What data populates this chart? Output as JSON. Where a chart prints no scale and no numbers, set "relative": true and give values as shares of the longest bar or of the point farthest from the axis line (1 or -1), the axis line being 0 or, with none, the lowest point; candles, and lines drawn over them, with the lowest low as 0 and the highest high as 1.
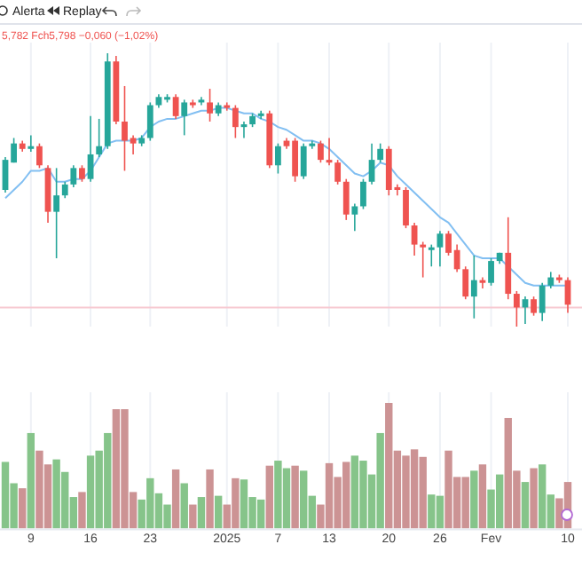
{
  "chart_data": [
    {
      "type": "candlestick",
      "relative": true,
      "grid": "x",
      "annotations": [
        "Alerta",
        "Replay",
        "5,782 Fch5,798 −0,060 (−1,02%)"
      ],
      "categories": [
        null,
        null,
        null,
        null,
        null,
        null,
        null,
        null,
        null,
        null,
        null,
        null,
        null,
        null,
        null,
        null,
        null,
        null,
        null,
        null,
        null,
        null,
        null,
        null,
        null,
        null,
        null,
        null,
        null,
        null,
        null,
        null,
        null,
        null,
        null,
        null,
        null,
        null,
        null,
        null,
        null,
        null,
        null,
        null,
        null,
        null,
        null,
        null,
        null,
        null,
        null,
        null,
        null,
        null,
        null,
        null,
        null,
        null,
        null,
        null,
        null,
        null,
        null,
        null,
        null,
        null,
        null
      ],
      "ohlc": [
        [
          0.5,
          0.62,
          0.49,
          0.61
        ],
        [
          0.6,
          0.69,
          0.6,
          0.67
        ],
        [
          0.67,
          0.68,
          0.64,
          0.65
        ],
        [
          0.65,
          0.7,
          0.64,
          0.66
        ],
        [
          0.66,
          0.67,
          0.58,
          0.59
        ],
        [
          0.58,
          0.59,
          0.38,
          0.42
        ],
        [
          0.42,
          0.58,
          0.25,
          0.48
        ],
        [
          0.48,
          0.53,
          0.47,
          0.52
        ],
        [
          0.52,
          0.59,
          0.51,
          0.58
        ],
        [
          0.58,
          0.59,
          0.53,
          0.54
        ],
        [
          0.54,
          0.77,
          0.53,
          0.63
        ],
        [
          0.63,
          0.76,
          0.62,
          0.66
        ],
        [
          0.66,
          1.0,
          0.65,
          0.97
        ],
        [
          0.97,
          0.99,
          0.74,
          0.75
        ],
        [
          0.75,
          0.88,
          0.57,
          0.68
        ],
        [
          0.69,
          0.7,
          0.63,
          0.67
        ],
        [
          0.67,
          0.7,
          0.66,
          0.69
        ],
        [
          0.69,
          0.82,
          0.68,
          0.81
        ],
        [
          0.81,
          0.85,
          0.8,
          0.84
        ],
        [
          0.83,
          0.85,
          0.82,
          0.84
        ],
        [
          0.84,
          0.85,
          0.76,
          0.77
        ],
        [
          0.77,
          0.83,
          0.7,
          0.82
        ],
        [
          0.82,
          0.83,
          0.8,
          0.81
        ],
        [
          0.82,
          0.84,
          0.81,
          0.83
        ],
        [
          0.82,
          0.87,
          0.75,
          0.78
        ],
        [
          0.78,
          0.82,
          0.77,
          0.81
        ],
        [
          0.81,
          0.82,
          0.79,
          0.8
        ],
        [
          0.8,
          0.81,
          0.69,
          0.73
        ],
        [
          0.73,
          0.75,
          0.69,
          0.74
        ],
        [
          0.74,
          0.78,
          0.73,
          0.77
        ],
        [
          0.77,
          0.79,
          0.76,
          0.78
        ],
        [
          0.78,
          0.79,
          0.58,
          0.59
        ],
        [
          0.59,
          0.67,
          0.56,
          0.66
        ],
        [
          0.68,
          0.69,
          0.65,
          0.66
        ],
        [
          0.68,
          0.69,
          0.53,
          0.55
        ],
        [
          0.55,
          0.67,
          0.54,
          0.66
        ],
        [
          0.66,
          0.68,
          0.65,
          0.67
        ],
        [
          0.67,
          0.68,
          0.6,
          0.61
        ],
        [
          0.61,
          0.69,
          0.59,
          0.6
        ],
        [
          0.6,
          0.61,
          0.52,
          0.53
        ],
        [
          0.53,
          0.54,
          0.39,
          0.41
        ],
        [
          0.41,
          0.45,
          0.35,
          0.44
        ],
        [
          0.44,
          0.54,
          0.43,
          0.53
        ],
        [
          0.53,
          0.67,
          0.52,
          0.61
        ],
        [
          0.61,
          0.67,
          0.6,
          0.65
        ],
        [
          0.65,
          0.66,
          0.48,
          0.5
        ],
        [
          0.51,
          0.52,
          0.48,
          0.5
        ],
        [
          0.5,
          0.51,
          0.36,
          0.37
        ],
        [
          0.37,
          0.38,
          0.26,
          0.3
        ],
        [
          0.3,
          0.31,
          0.18,
          0.29
        ],
        [
          0.28,
          0.3,
          0.22,
          0.29
        ],
        [
          0.29,
          0.35,
          0.22,
          0.34
        ],
        [
          0.34,
          0.35,
          0.26,
          0.27
        ],
        [
          0.28,
          0.3,
          0.2,
          0.21
        ],
        [
          0.21,
          0.22,
          0.1,
          0.11
        ],
        [
          0.11,
          0.26,
          0.03,
          0.17
        ],
        [
          0.17,
          0.18,
          0.14,
          0.16
        ],
        [
          0.16,
          0.25,
          0.15,
          0.24
        ],
        [
          0.24,
          0.27,
          0.23,
          0.27
        ],
        [
          0.27,
          0.4,
          0.1,
          0.12
        ],
        [
          0.12,
          0.13,
          0.0,
          0.07
        ],
        [
          0.07,
          0.11,
          0.01,
          0.1
        ],
        [
          0.1,
          0.11,
          0.04,
          0.05
        ],
        [
          0.05,
          0.16,
          0.02,
          0.15
        ],
        [
          0.15,
          0.2,
          0.14,
          0.18
        ],
        [
          0.18,
          0.19,
          0.16,
          0.17
        ],
        [
          0.17,
          0.18,
          0.05,
          0.08
        ]
      ],
      "series": [
        {
          "type": "line",
          "color": "#82bff2",
          "values": [
            0.47,
            0.5,
            0.53,
            0.57,
            0.57,
            0.58,
            0.53,
            0.53,
            0.54,
            0.54,
            0.57,
            0.62,
            0.67,
            0.68,
            0.68,
            0.68,
            0.69,
            0.73,
            0.75,
            0.76,
            0.76,
            0.77,
            0.78,
            0.79,
            0.79,
            0.8,
            0.8,
            0.79,
            0.78,
            0.78,
            0.76,
            0.75,
            0.73,
            0.72,
            0.7,
            0.68,
            0.68,
            0.67,
            0.65,
            0.62,
            0.59,
            0.56,
            0.55,
            0.57,
            0.6,
            0.59,
            0.55,
            0.52,
            0.49,
            0.46,
            0.43,
            0.4,
            0.38,
            0.34,
            0.3,
            0.26,
            0.25,
            0.25,
            0.25,
            0.22,
            0.19,
            0.16,
            0.15,
            0.15,
            0.15,
            0.15,
            0.15
          ]
        }
      ],
      "ref_lines": [
        {
          "axis": "y",
          "value": 0.07,
          "color": "#f7c9d2"
        }
      ]
    },
    {
      "type": "bar",
      "relative": true,
      "tick_labels": "x",
      "grid": "x",
      "categories": [
        null,
        null,
        null,
        "9",
        null,
        null,
        null,
        null,
        null,
        null,
        "16",
        null,
        null,
        null,
        null,
        null,
        null,
        "23",
        null,
        null,
        null,
        null,
        null,
        null,
        null,
        null,
        "2025",
        null,
        null,
        null,
        null,
        null,
        "7",
        null,
        null,
        null,
        null,
        null,
        "13",
        null,
        null,
        null,
        null,
        null,
        null,
        "20",
        null,
        null,
        null,
        null,
        null,
        "26",
        null,
        null,
        null,
        null,
        null,
        "Fev",
        null,
        null,
        null,
        null,
        null,
        null,
        null,
        null,
        "10"
      ],
      "values": [
        0.53,
        0.36,
        0.32,
        0.76,
        0.62,
        0.51,
        0.55,
        0.45,
        0.25,
        0.29,
        0.58,
        0.62,
        0.76,
        0.95,
        0.95,
        0.29,
        0.23,
        0.4,
        0.28,
        0.19,
        0.47,
        0.36,
        0.19,
        0.25,
        0.47,
        0.26,
        0.19,
        0.4,
        0.39,
        0.25,
        0.23,
        0.5,
        0.54,
        0.48,
        0.5,
        0.46,
        0.26,
        0.19,
        0.52,
        0.41,
        0.53,
        0.58,
        0.54,
        0.43,
        0.76,
        1,
        0.62,
        0.58,
        0.63,
        0.57,
        0.27,
        0.26,
        0.62,
        0.41,
        0.41,
        0.46,
        0.51,
        0.31,
        0.43,
        0.88,
        0.46,
        0.37,
        0.48,
        0.51,
        0.27,
        0.24,
        0.37
      ],
      "colors": [
        "#86c48a",
        "#86c48a",
        "#cc9394",
        "#86c48a",
        "#cc9394",
        "#cc9394",
        "#86c48a",
        "#86c48a",
        "#86c48a",
        "#cc9394",
        "#86c48a",
        "#86c48a",
        "#86c48a",
        "#cc9394",
        "#cc9394",
        "#cc9394",
        "#86c48a",
        "#86c48a",
        "#86c48a",
        "#86c48a",
        "#cc9394",
        "#86c48a",
        "#cc9394",
        "#86c48a",
        "#cc9394",
        "#86c48a",
        "#cc9394",
        "#cc9394",
        "#86c48a",
        "#86c48a",
        "#86c48a",
        "#cc9394",
        "#86c48a",
        "#86c48a",
        "#cc9394",
        "#86c48a",
        "#86c48a",
        "#cc9394",
        "#cc9394",
        "#cc9394",
        "#cc9394",
        "#86c48a",
        "#86c48a",
        "#86c48a",
        "#86c48a",
        "#cc9394",
        "#cc9394",
        "#cc9394",
        "#cc9394",
        "#cc9394",
        "#86c48a",
        "#86c48a",
        "#cc9394",
        "#cc9394",
        "#cc9394",
        "#86c48a",
        "#cc9394",
        "#86c48a",
        "#86c48a",
        "#cc9394",
        "#cc9394",
        "#86c48a",
        "#cc9394",
        "#86c48a",
        "#86c48a",
        "#cc9394",
        "#cc9394"
      ]
    }
  ]
}
